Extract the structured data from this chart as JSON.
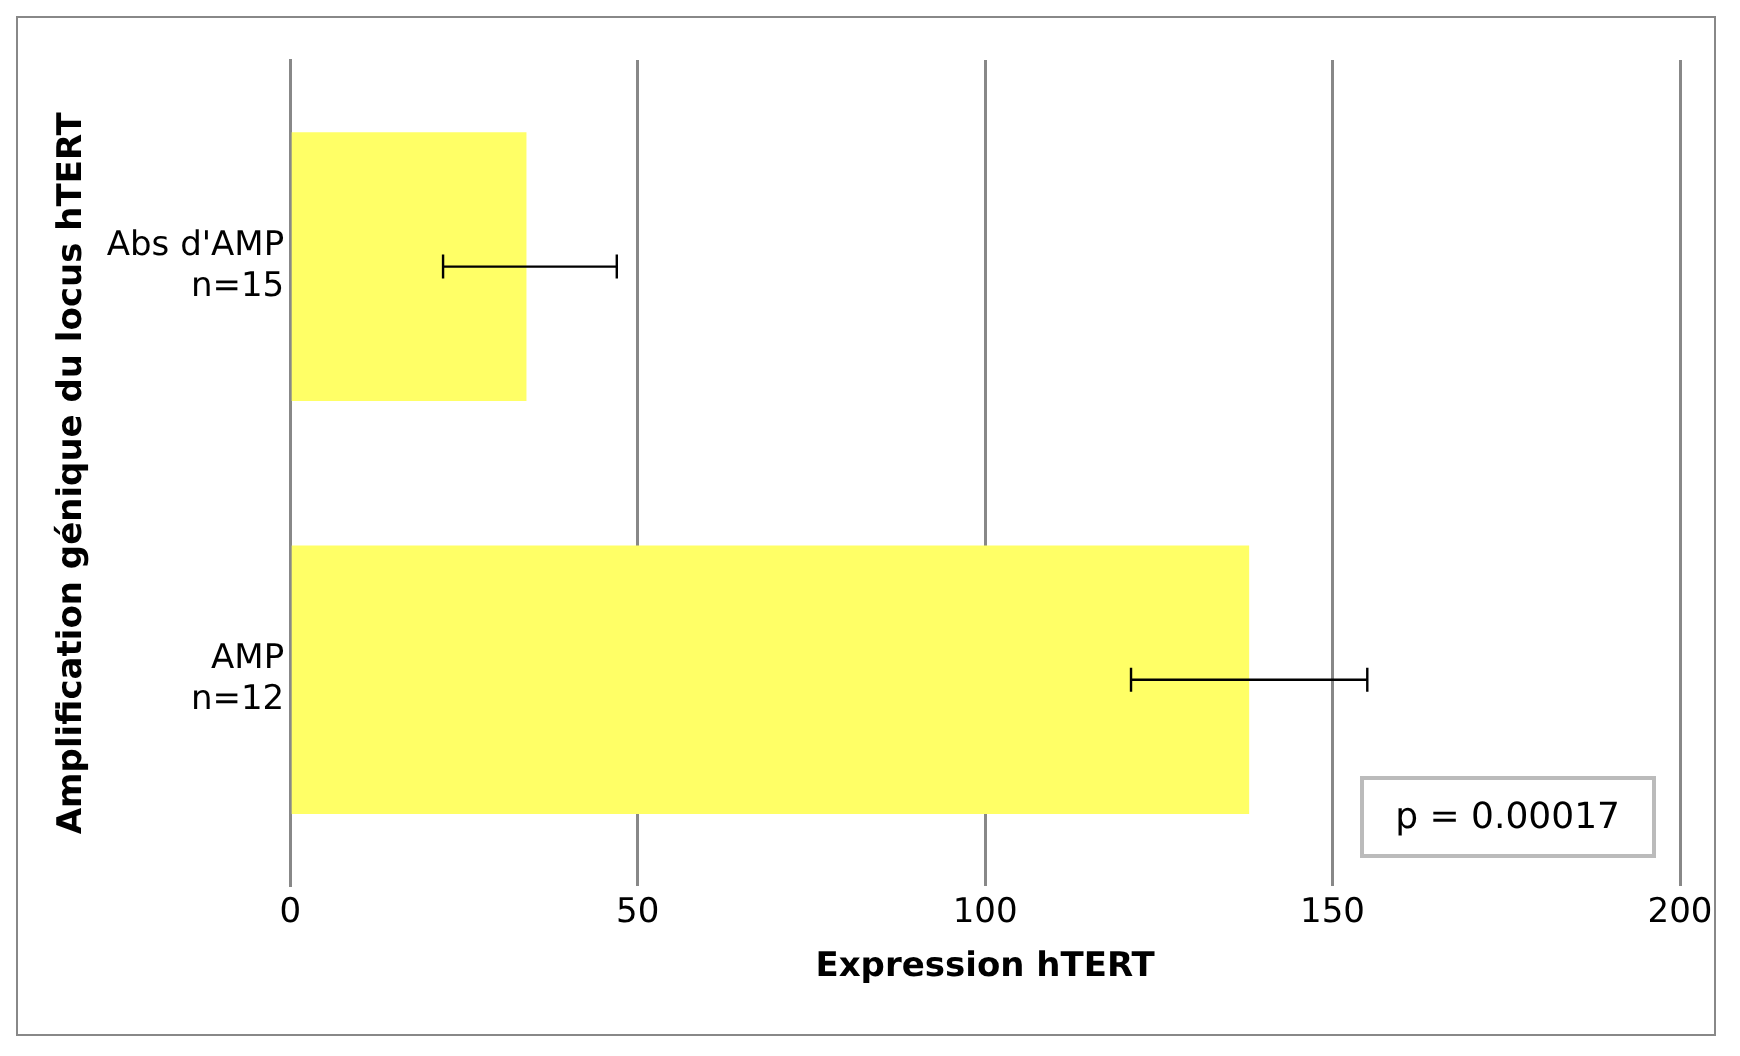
{
  "chart_data": {
    "type": "bar",
    "orientation": "horizontal",
    "categories": [
      "Abs d'AMP\nn=15",
      "AMP\nn=12"
    ],
    "values": [
      34,
      138
    ],
    "color": "#ffff66",
    "errors": [
      [
        22,
        47
      ],
      [
        121,
        155
      ]
    ],
    "xlim": [
      0,
      200
    ],
    "xticks": [
      0,
      50,
      100,
      150,
      200
    ],
    "grid": "x",
    "xlabel": "Expression hTERT",
    "ylabel": "Amplification génique du locus hTERT",
    "annotations": [
      "p = 0.00017"
    ]
  }
}
